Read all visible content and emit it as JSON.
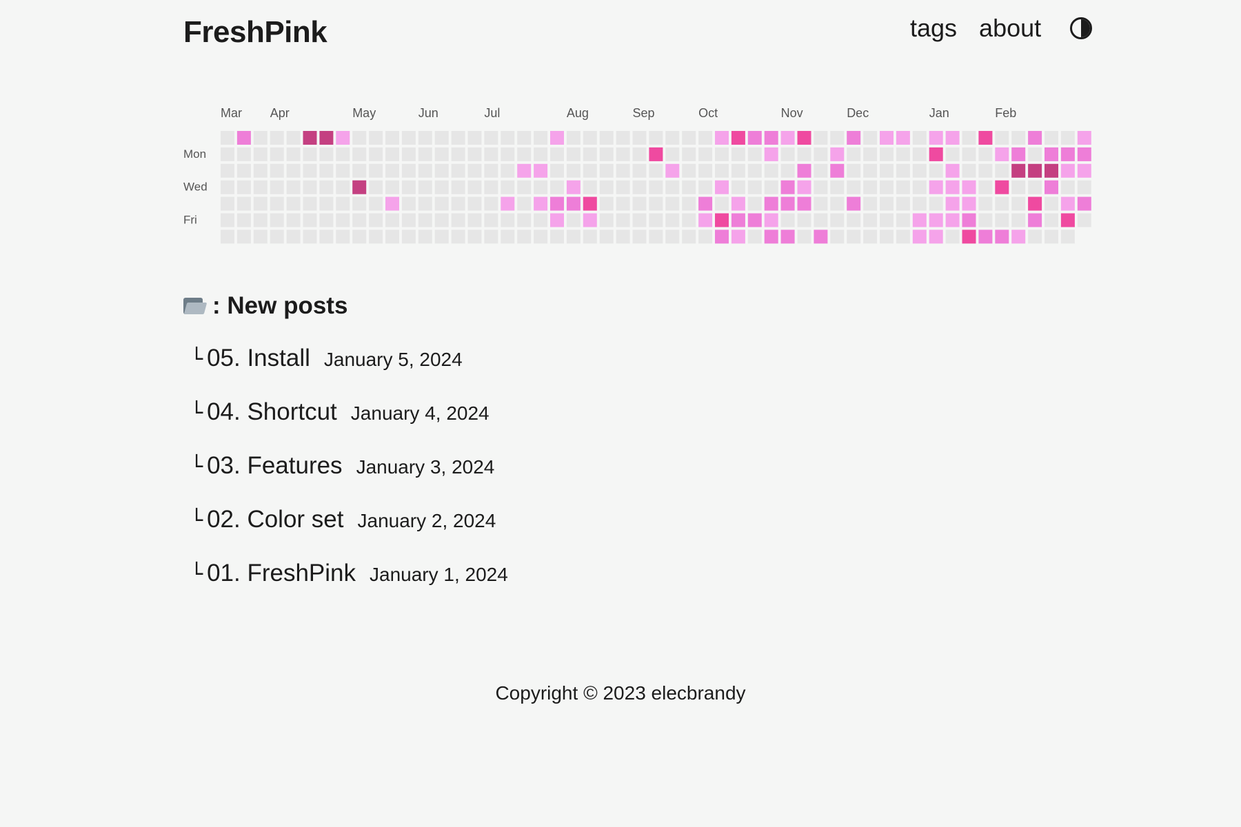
{
  "site": {
    "title": "FreshPink"
  },
  "nav": {
    "items": [
      "tags",
      "about"
    ],
    "theme_toggle_icon": "half-circle-contrast-icon"
  },
  "heatmap": {
    "months": [
      "Mar",
      "Apr",
      "May",
      "Jun",
      "Jul",
      "Aug",
      "Sep",
      "Oct",
      "Nov",
      "Dec",
      "Jan",
      "Feb"
    ],
    "month_start_weeks": [
      0,
      3,
      8,
      12,
      16,
      21,
      25,
      29,
      34,
      38,
      43,
      47
    ],
    "day_labels": [
      "Mon",
      "Wed",
      "Fri"
    ],
    "day_label_rows": [
      1,
      3,
      5
    ],
    "weeks": 53,
    "colors": [
      "#e6e6e6",
      "#f5a3ea",
      "#ee7ed8",
      "#ef4aa0",
      "#c44081"
    ],
    "levels": [
      "0000000000000000000000000000000000000000000000000000",
      "0000000000000000000000000000000000000000000000000000",
      "0000000000000000000000000000000000000000000000000000",
      "0000000000000000000000000000000000000000000000000000",
      "0000000000000000000000000000000000000000000000000000",
      "0000000000000000000000000000000000000000000000000000",
      "0000000000000000000000000000000000000000000000000000"
    ],
    "cells": [
      [
        0,
        1,
        2
      ],
      [
        0,
        5,
        4
      ],
      [
        0,
        6,
        4
      ],
      [
        0,
        7,
        1
      ],
      [
        3,
        8,
        4
      ],
      [
        4,
        10,
        1
      ],
      [
        2,
        18,
        1
      ],
      [
        2,
        19,
        1
      ],
      [
        4,
        17,
        1
      ],
      [
        4,
        19,
        1
      ],
      [
        0,
        20,
        1
      ],
      [
        3,
        21,
        1
      ],
      [
        4,
        20,
        2
      ],
      [
        4,
        21,
        2
      ],
      [
        4,
        22,
        3
      ],
      [
        5,
        20,
        1
      ],
      [
        5,
        22,
        1
      ],
      [
        1,
        26,
        3
      ],
      [
        2,
        27,
        1
      ],
      [
        0,
        30,
        1
      ],
      [
        0,
        31,
        3
      ],
      [
        0,
        32,
        2
      ],
      [
        0,
        33,
        2
      ],
      [
        0,
        34,
        1
      ],
      [
        0,
        35,
        3
      ],
      [
        1,
        33,
        1
      ],
      [
        2,
        35,
        2
      ],
      [
        3,
        30,
        1
      ],
      [
        3,
        34,
        2
      ],
      [
        3,
        35,
        1
      ],
      [
        4,
        29,
        2
      ],
      [
        4,
        31,
        1
      ],
      [
        4,
        33,
        2
      ],
      [
        4,
        34,
        2
      ],
      [
        4,
        35,
        2
      ],
      [
        5,
        29,
        1
      ],
      [
        5,
        30,
        3
      ],
      [
        5,
        31,
        2
      ],
      [
        5,
        32,
        2
      ],
      [
        5,
        33,
        1
      ],
      [
        6,
        30,
        2
      ],
      [
        6,
        31,
        1
      ],
      [
        6,
        33,
        2
      ],
      [
        6,
        34,
        2
      ],
      [
        6,
        36,
        2
      ],
      [
        0,
        38,
        2
      ],
      [
        0,
        40,
        1
      ],
      [
        0,
        41,
        1
      ],
      [
        1,
        37,
        1
      ],
      [
        2,
        37,
        2
      ],
      [
        4,
        38,
        2
      ],
      [
        0,
        43,
        1
      ],
      [
        0,
        44,
        1
      ],
      [
        0,
        46,
        3
      ],
      [
        0,
        49,
        2
      ],
      [
        0,
        52,
        1
      ],
      [
        1,
        43,
        3
      ],
      [
        1,
        47,
        1
      ],
      [
        1,
        48,
        2
      ],
      [
        1,
        50,
        2
      ],
      [
        1,
        51,
        2
      ],
      [
        1,
        52,
        2
      ],
      [
        2,
        44,
        1
      ],
      [
        2,
        48,
        4
      ],
      [
        2,
        49,
        4
      ],
      [
        2,
        50,
        4
      ],
      [
        2,
        51,
        1
      ],
      [
        2,
        52,
        1
      ],
      [
        3,
        43,
        1
      ],
      [
        3,
        44,
        1
      ],
      [
        3,
        45,
        1
      ],
      [
        3,
        47,
        3
      ],
      [
        3,
        50,
        2
      ],
      [
        4,
        44,
        1
      ],
      [
        4,
        45,
        1
      ],
      [
        4,
        49,
        3
      ],
      [
        4,
        51,
        1
      ],
      [
        4,
        52,
        2
      ],
      [
        5,
        42,
        1
      ],
      [
        5,
        43,
        1
      ],
      [
        5,
        44,
        1
      ],
      [
        5,
        45,
        2
      ],
      [
        5,
        49,
        2
      ],
      [
        5,
        51,
        3
      ],
      [
        6,
        42,
        1
      ],
      [
        6,
        43,
        1
      ],
      [
        6,
        45,
        3
      ],
      [
        6,
        46,
        2
      ],
      [
        6,
        47,
        2
      ],
      [
        6,
        48,
        1
      ]
    ]
  },
  "posts_section": {
    "title": ": New posts",
    "icon": "open-folder-icon"
  },
  "posts": [
    {
      "title": "05. Install",
      "date": "January 5, 2024"
    },
    {
      "title": "04. Shortcut",
      "date": "January 4, 2024"
    },
    {
      "title": "03. Features",
      "date": "January 3, 2024"
    },
    {
      "title": "02. Color set",
      "date": "January 2, 2024"
    },
    {
      "title": "01. FreshPink",
      "date": "January 1, 2024"
    }
  ],
  "footer": {
    "text": "Copyright © 2023 elecbrandy"
  }
}
